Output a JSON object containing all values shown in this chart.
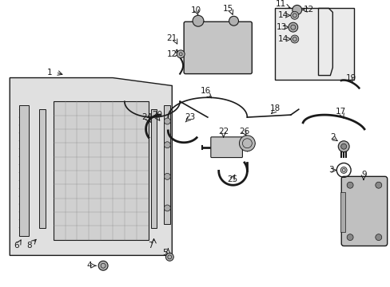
{
  "bg_color": "#ffffff",
  "line_color": "#1a1a1a",
  "gray_fill": "#c8c8c8",
  "gray_light": "#e0e0e0",
  "gray_med": "#b0b0b0",
  "font_size": 7.5,
  "fig_width": 4.89,
  "fig_height": 3.6,
  "dpi": 100
}
